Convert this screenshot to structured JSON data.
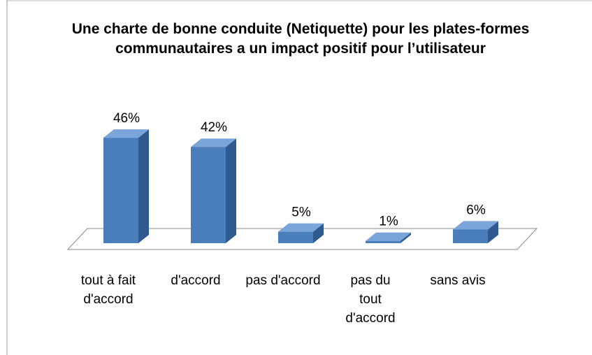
{
  "chart_data": {
    "type": "bar3d",
    "title": "Une charte de bonne conduite (Netiquette) pour les plates-formes communautaires a un impact positif pour l’utilisateur",
    "categories": [
      "tout à fait d'accord",
      "d'accord",
      "pas d'accord",
      "pas du tout d'accord",
      "sans avis"
    ],
    "values": [
      46,
      42,
      5,
      1,
      6
    ],
    "value_labels": [
      "46%",
      "42%",
      "5%",
      "1%",
      "6%"
    ],
    "color": "#4a7ebb",
    "ylim": [
      0,
      50
    ]
  }
}
